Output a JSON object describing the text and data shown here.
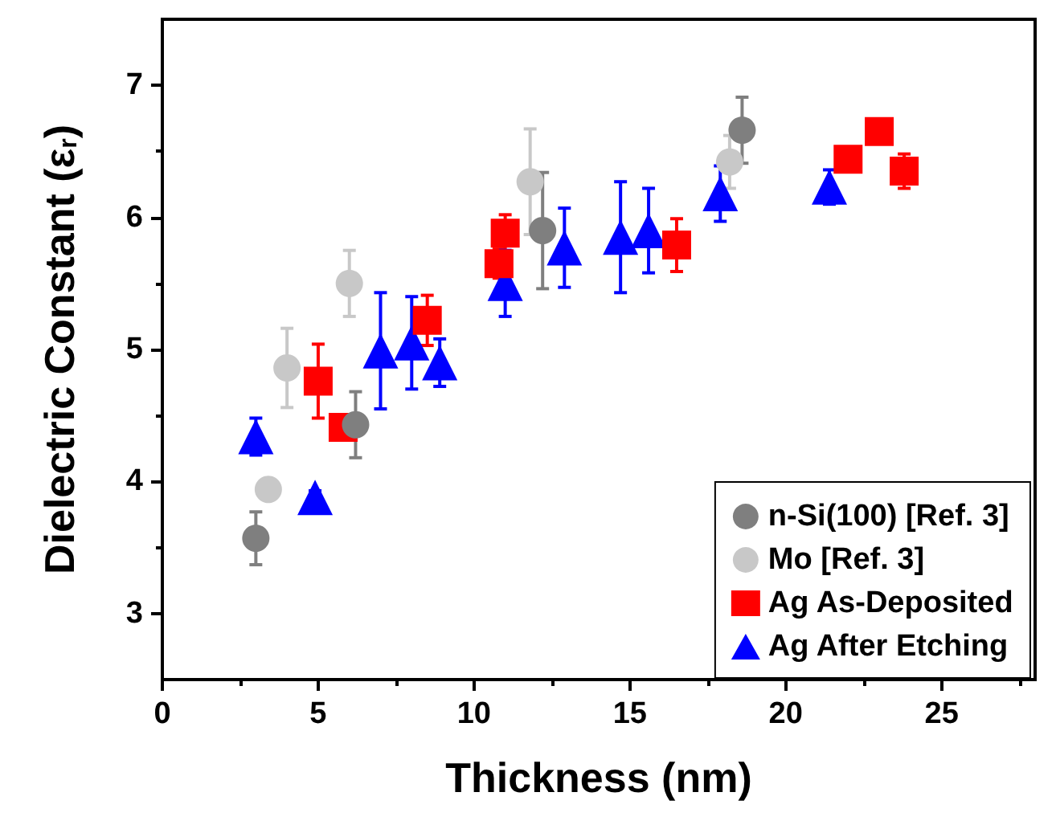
{
  "chart_data": {
    "type": "scatter",
    "xlabel": "Thickness (nm)",
    "ylabel": "Dielectric Constant (ε$_{r}$)",
    "xlim": [
      0,
      28
    ],
    "xticks": [
      0,
      5,
      10,
      15,
      20,
      25
    ],
    "ylim": [
      2.5,
      7.5
    ],
    "yticks": [
      3,
      4,
      5,
      6,
      7
    ],
    "legend": "bottom right",
    "grid": false,
    "series": [
      {
        "name": "n-Si(100) [Ref. 3]",
        "color": "#7f7f7f",
        "marker": "circle",
        "x": [
          3.0,
          6.2,
          12.2,
          18.6
        ],
        "values": [
          3.57,
          4.43,
          5.9,
          6.66
        ],
        "errors": [
          0.2,
          0.25,
          0.44,
          0.25
        ]
      },
      {
        "name": "Mo [Ref. 3]",
        "color": "#c8c8c8",
        "marker": "circle",
        "x": [
          3.4,
          4.0,
          6.0,
          11.8,
          18.2
        ],
        "values": [
          3.94,
          4.86,
          5.5,
          6.27,
          6.42
        ],
        "errors": [
          null,
          0.3,
          0.25,
          0.4,
          0.2
        ]
      },
      {
        "name": "Ag As-Deposited",
        "color": "#ff0000",
        "marker": "square",
        "x": [
          5.0,
          5.8,
          8.5,
          10.8,
          11.0,
          16.5,
          22.0,
          23.0,
          23.8
        ],
        "values": [
          4.76,
          4.41,
          5.22,
          5.65,
          5.88,
          5.79,
          6.44,
          6.65,
          6.35
        ],
        "errors": [
          0.28,
          0.07,
          0.19,
          0.11,
          0.14,
          0.2,
          0.05,
          0.05,
          0.13
        ]
      },
      {
        "name": "Ag After Etching",
        "color": "#0000ff",
        "marker": "triangle",
        "x": [
          3.0,
          4.9,
          7.0,
          8.0,
          8.9,
          11.0,
          12.9,
          14.7,
          15.6,
          17.9,
          21.4
        ],
        "values": [
          4.34,
          3.88,
          4.99,
          5.05,
          4.9,
          5.5,
          5.77,
          5.85,
          5.9,
          6.18,
          6.23
        ],
        "errors": [
          0.14,
          0.05,
          0.44,
          0.35,
          0.18,
          0.25,
          0.3,
          0.42,
          0.32,
          0.21,
          0.13
        ]
      }
    ]
  }
}
